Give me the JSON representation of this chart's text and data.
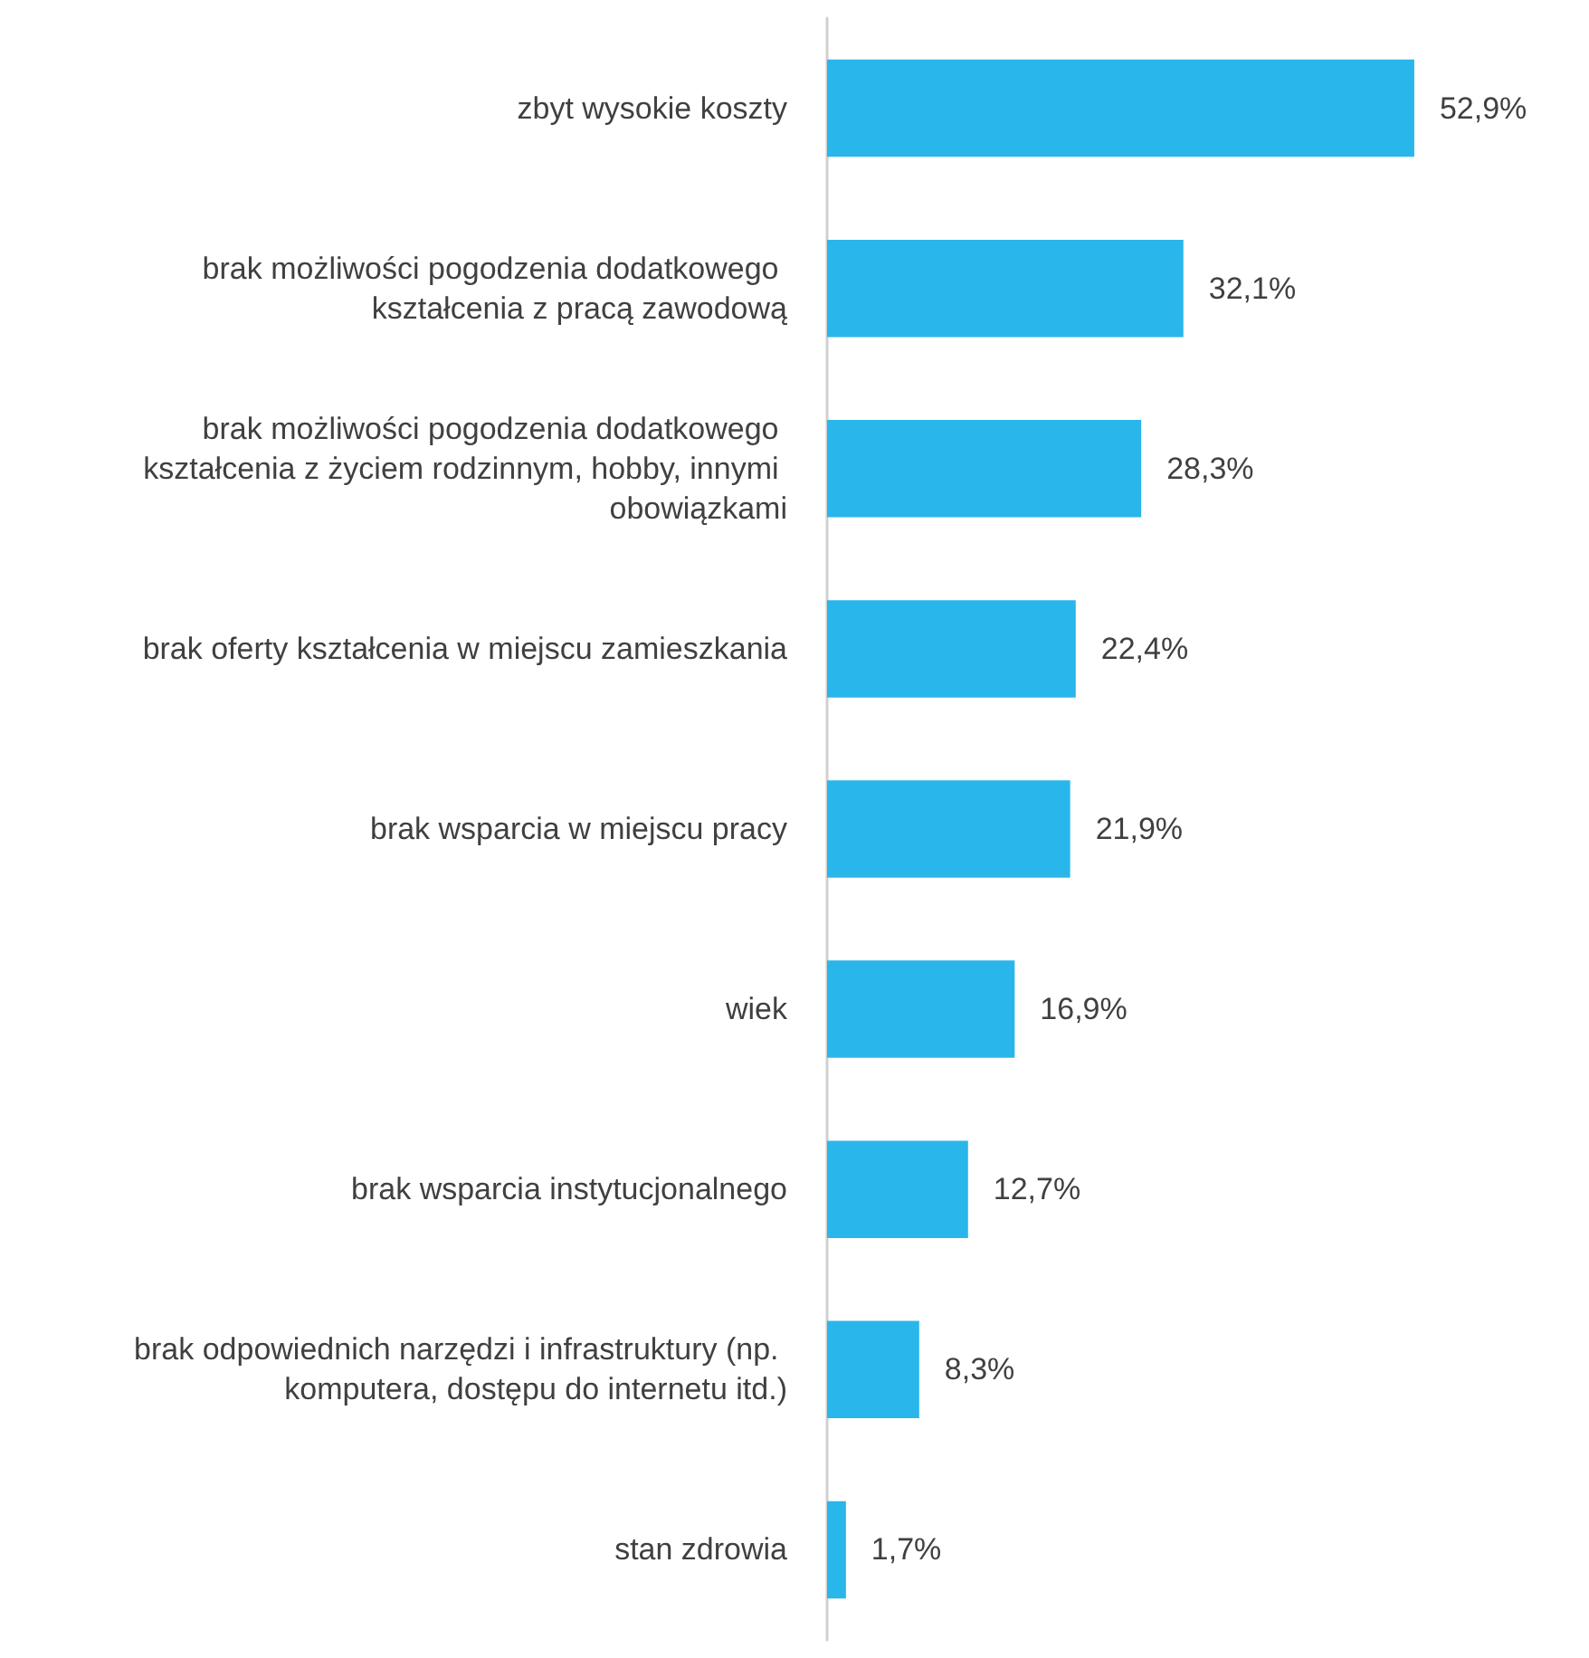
{
  "chart_data": {
    "type": "bar",
    "orientation": "horizontal",
    "categories": [
      "zbyt wysokie koszty",
      "brak możliwości pogodzenia dodatkowego kształcenia z pracą zawodową",
      "brak możliwości pogodzenia dodatkowego kształcenia z życiem rodzinnym, hobby, innymi obowiązkami",
      "brak oferty kształcenia w miejscu zamieszkania",
      "brak wsparcia w miejscu pracy",
      "wiek",
      "brak wsparcia instytucjonalnego",
      "brak odpowiednich narzędzi i infrastruktury (np. komputera, dostępu do internetu itd.)",
      "stan zdrowia"
    ],
    "values": [
      52.9,
      32.1,
      28.3,
      22.4,
      21.9,
      16.9,
      12.7,
      8.3,
      1.7
    ],
    "value_labels": [
      "52,9%",
      "32,1%",
      "28,3%",
      "22,4%",
      "21,9%",
      "16,9%",
      "12,7%",
      "8,3%",
      "1,7%"
    ],
    "color": "#29b6ea",
    "tick_labels": "y"
  }
}
